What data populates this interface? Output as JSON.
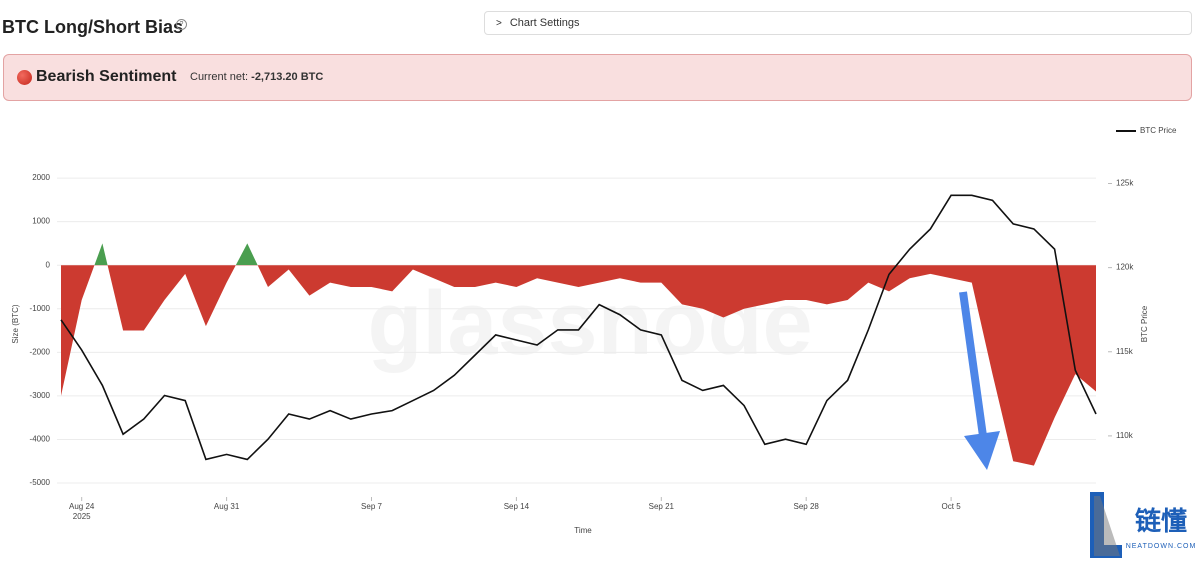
{
  "header": {
    "title": "BTC Long/Short Bias",
    "help": "?",
    "settings": "Chart Settings"
  },
  "banner": {
    "sentiment": "Bearish Sentiment",
    "current_label": "Current net:",
    "current_value": "-2,713.20 BTC"
  },
  "watermark": "glassnode",
  "logo": {
    "name": "链懂",
    "site": "NEATDOWN.COM"
  },
  "chart_data": {
    "type": "area_line",
    "ylabel": "Size (BTC)",
    "y2label": "BTC Price",
    "xlabel": "Time",
    "x": [
      "2025-08-23",
      "2025-08-24",
      "2025-08-25",
      "2025-08-26",
      "2025-08-27",
      "2025-08-28",
      "2025-08-29",
      "2025-08-30",
      "2025-08-31",
      "2025-09-01",
      "2025-09-02",
      "2025-09-03",
      "2025-09-04",
      "2025-09-05",
      "2025-09-06",
      "2025-09-07",
      "2025-09-08",
      "2025-09-09",
      "2025-09-10",
      "2025-09-11",
      "2025-09-12",
      "2025-09-13",
      "2025-09-14",
      "2025-09-15",
      "2025-09-16",
      "2025-09-17",
      "2025-09-18",
      "2025-09-19",
      "2025-09-20",
      "2025-09-21",
      "2025-09-22",
      "2025-09-23",
      "2025-09-24",
      "2025-09-25",
      "2025-09-26",
      "2025-09-27",
      "2025-09-28",
      "2025-09-29",
      "2025-09-30",
      "2025-10-01",
      "2025-10-02",
      "2025-10-03",
      "2025-10-04",
      "2025-10-05",
      "2025-10-06",
      "2025-10-07",
      "2025-10-08",
      "2025-10-09",
      "2025-10-10",
      "2025-10-11",
      "2025-10-12"
    ],
    "series": [
      {
        "color": "#cc3a30",
        "positive_color": "#4a9e4f",
        "values": [
          -3000,
          -800,
          500,
          -1500,
          -1500,
          -800,
          -200,
          -1400,
          -400,
          500,
          -500,
          -100,
          -700,
          -400,
          -500,
          -500,
          -600,
          -100,
          -300,
          -500,
          -500,
          -400,
          -500,
          -300,
          -400,
          -500,
          -400,
          -300,
          -400,
          -400,
          -900,
          -1000,
          -1200,
          -1000,
          -900,
          -800,
          -800,
          -900,
          -800,
          -400,
          -600,
          -300,
          -200,
          -300,
          -400,
          -2500,
          -4500,
          -4600,
          -3500,
          -2500,
          -2900
        ]
      },
      {
        "name": "BTC Price",
        "color": "#111111",
        "axis": "y2",
        "values": [
          116900,
          115100,
          113000,
          110100,
          111000,
          112400,
          112100,
          108600,
          108900,
          108600,
          109800,
          111300,
          111000,
          111500,
          111000,
          111300,
          111500,
          112100,
          112700,
          113600,
          114800,
          116000,
          115700,
          115400,
          116300,
          116300,
          117800,
          117200,
          116300,
          116000,
          113300,
          112700,
          113000,
          111800,
          109500,
          109800,
          109500,
          112100,
          113300,
          116300,
          119600,
          121100,
          122300,
          124300,
          124300,
          124000,
          122600,
          122300,
          121100,
          113900,
          111300
        ]
      }
    ],
    "xlim": [
      "2025-08-23",
      "2025-10-12"
    ],
    "xticks": [
      {
        "value": "2025-08-24",
        "label": "Aug 24"
      },
      {
        "value": "2025-08-31",
        "label": "Aug 31"
      },
      {
        "value": "2025-09-07",
        "label": "Sep 7"
      },
      {
        "value": "2025-09-14",
        "label": "Sep 14"
      },
      {
        "value": "2025-09-21",
        "label": "Sep 21"
      },
      {
        "value": "2025-09-28",
        "label": "Sep 28"
      },
      {
        "value": "2025-10-05",
        "label": "Oct 5"
      }
    ],
    "x_year_label": "2025",
    "ylim": [
      -5000,
      2300
    ],
    "yticks": [
      -5000,
      -4000,
      -3000,
      -2000,
      -1000,
      0,
      1000,
      2000
    ],
    "y2lim": [
      107200,
      126100
    ],
    "y2ticks": [
      {
        "value": 110000,
        "label": "110k"
      },
      {
        "value": 115000,
        "label": "115k"
      },
      {
        "value": 120000,
        "label": "120k"
      },
      {
        "value": 125000,
        "label": "125k"
      }
    ],
    "grid": true,
    "legend": "top-right"
  }
}
